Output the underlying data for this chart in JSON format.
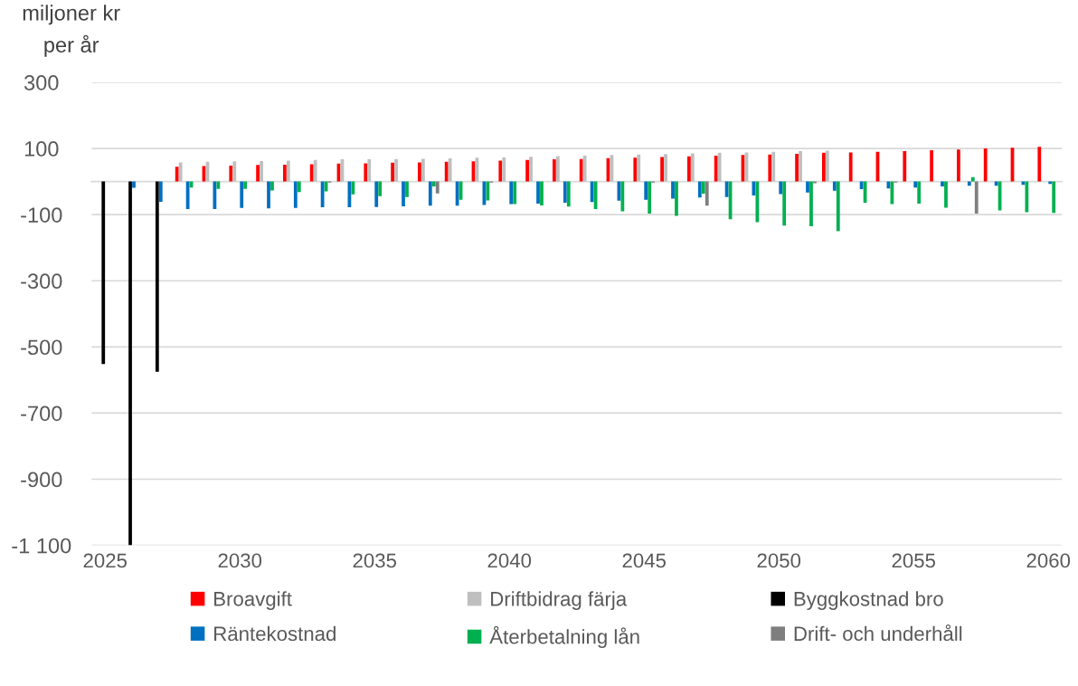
{
  "chart_data": {
    "type": "bar",
    "ylabel": "miljoner kr\nper år",
    "categories": [
      "2025",
      null,
      null,
      null,
      null,
      "2030",
      null,
      null,
      null,
      null,
      "2035",
      null,
      null,
      null,
      null,
      "2040",
      null,
      null,
      null,
      null,
      "2045",
      null,
      null,
      null,
      null,
      "2050",
      null,
      null,
      null,
      null,
      "2055",
      null,
      null,
      null,
      null,
      "2060"
    ],
    "series": [
      {
        "name": "Broavgift",
        "color": "#ff0000",
        "values": [
          null,
          null,
          null,
          45,
          47,
          48,
          50,
          51,
          52,
          54,
          55,
          57,
          58,
          60,
          61,
          63,
          65,
          67,
          68,
          71,
          72,
          74,
          76,
          78,
          80,
          82,
          84,
          87,
          88,
          90,
          92,
          95,
          97,
          100,
          102,
          105
        ]
      },
      {
        "name": "Driftbidrag färja",
        "color": "#bfbfbf",
        "values": [
          null,
          null,
          null,
          58,
          60,
          61,
          62,
          63,
          65,
          67,
          67,
          68,
          69,
          70,
          72,
          73,
          75,
          77,
          78,
          80,
          82,
          83,
          85,
          87,
          88,
          90,
          92,
          93,
          null,
          null,
          null,
          null,
          null,
          null,
          null,
          null
        ]
      },
      {
        "name": "Byggkostnad bro",
        "color": "#000000",
        "values": [
          -552,
          -1100,
          -575,
          null,
          null,
          null,
          null,
          null,
          null,
          null,
          null,
          null,
          null,
          null,
          null,
          null,
          null,
          null,
          null,
          null,
          null,
          null,
          null,
          null,
          null,
          null,
          null,
          null,
          null,
          null,
          null,
          null,
          null,
          null,
          null,
          null
        ]
      },
      {
        "name": "Räntekostnad",
        "color": "#0070c0",
        "values": [
          null,
          -19,
          -61,
          -83,
          -83,
          -80,
          -81,
          -80,
          -78,
          -78,
          -77,
          -75,
          -73,
          -73,
          -71,
          -68,
          -67,
          -64,
          -62,
          -58,
          -55,
          -52,
          -48,
          -47,
          -42,
          -38,
          -33,
          -28,
          -23,
          -21,
          -18,
          -15,
          -13,
          -13,
          -10,
          -7
        ]
      },
      {
        "name": "Återbetalning lån",
        "color": "#00b050",
        "values": [
          null,
          null,
          null,
          -18,
          -22,
          -22,
          -27,
          -32,
          -30,
          -39,
          -44,
          -47,
          -15,
          -55,
          -57,
          -68,
          -72,
          -76,
          -83,
          -90,
          -97,
          -104,
          -37,
          -114,
          -123,
          -133,
          -135,
          -150,
          -64,
          -68,
          -67,
          -79,
          13,
          -87,
          -93,
          -95
        ]
      },
      {
        "name": "Drift- och underhåll",
        "color": "#7f7f7f",
        "values": [
          null,
          null,
          null,
          null,
          null,
          null,
          null,
          null,
          -3,
          null,
          null,
          null,
          -36,
          null,
          -3,
          null,
          null,
          null,
          null,
          null,
          -3,
          null,
          -73,
          null,
          null,
          null,
          -5,
          null,
          null,
          -3,
          null,
          null,
          -97,
          null,
          null,
          null
        ]
      }
    ],
    "ylim": [
      -1100,
      300
    ],
    "yticks": [
      300,
      100,
      -100,
      -300,
      -500,
      -700,
      -900,
      {
        "value": -1100,
        "label": "-1 100"
      }
    ],
    "grid": "y",
    "legend": "bottom"
  }
}
